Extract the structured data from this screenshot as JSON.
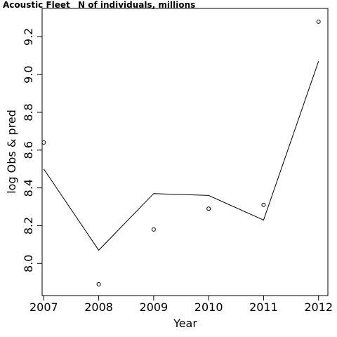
{
  "chart_data": {
    "type": "scatter",
    "title_left": "Acoustic Fleet",
    "title_right": "N of individuals, millions",
    "xlabel": "Year",
    "ylabel": "log Obs & pred",
    "xlim": [
      2006.97,
      2012.17
    ],
    "ylim": [
      7.83,
      9.35
    ],
    "x_ticks": [
      2007,
      2008,
      2009,
      2010,
      2011,
      2012
    ],
    "y_ticks": [
      8.0,
      8.2,
      8.4,
      8.6,
      8.8,
      9.0,
      9.2
    ],
    "y_tick_labels": [
      "8.0",
      "8.2",
      "8.4",
      "8.6",
      "8.8",
      "9.0",
      "9.2"
    ],
    "series": [
      {
        "kind": "points",
        "x": [
          2007,
          2008,
          2009,
          2010,
          2011,
          2012
        ],
        "y": [
          8.64,
          7.89,
          8.18,
          8.29,
          8.31,
          9.28
        ]
      },
      {
        "kind": "line",
        "x": [
          2007,
          2008,
          2009,
          2010,
          2011,
          2012
        ],
        "y": [
          8.5,
          8.07,
          8.37,
          8.36,
          8.23,
          9.07
        ]
      }
    ],
    "grid": false,
    "colors": {
      "line": "#000000",
      "points": "#000000",
      "frame": "#000000"
    }
  }
}
